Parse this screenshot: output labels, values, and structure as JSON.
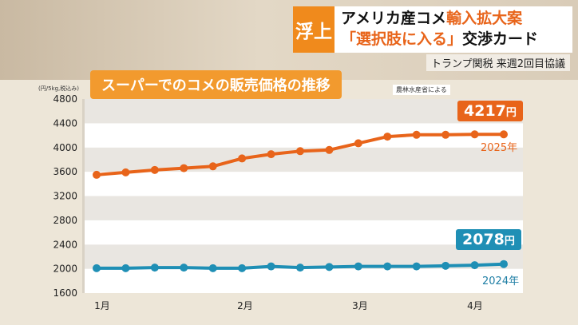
{
  "header": {
    "tag": "浮上",
    "line1_plain": "アメリカ産コメ",
    "line1_highlight": "輸入拡大案",
    "line2_highlight": "「選択肢に入る」",
    "line2_plain": "交渉カード",
    "subhead": "トランプ関税 来週2回目協議"
  },
  "chart_data": {
    "type": "line",
    "title": "スーパーでのコメの販売価格の推移",
    "source": "農林水産省による",
    "unit_label": "(円/5kg,税込み)",
    "ylim": [
      1600,
      4800
    ],
    "yticks": [
      "1600",
      "2000",
      "2400",
      "2800",
      "3200",
      "3600",
      "4000",
      "4400",
      "4800"
    ],
    "xticks": [
      "1月",
      "2月",
      "3月",
      "4月"
    ],
    "grid": "horizontal bands",
    "series": [
      {
        "name": "2025年",
        "color": "#e8641a",
        "values": [
          3550,
          3590,
          3630,
          3660,
          3690,
          3820,
          3890,
          3940,
          3960,
          4070,
          4180,
          4210,
          4210,
          4217,
          4217
        ],
        "end_label": "4217",
        "end_unit": "円"
      },
      {
        "name": "2024年",
        "color": "#1f8fb5",
        "values": [
          2010,
          2010,
          2020,
          2020,
          2010,
          2010,
          2040,
          2020,
          2030,
          2040,
          2040,
          2040,
          2050,
          2060,
          2078
        ],
        "end_label": "2078",
        "end_unit": "円"
      }
    ]
  }
}
